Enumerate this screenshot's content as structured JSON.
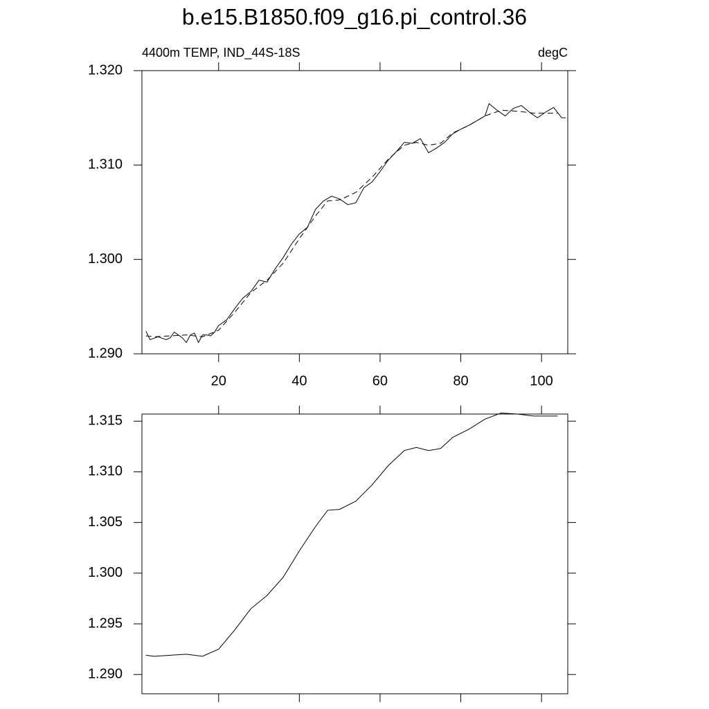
{
  "chart_data": [
    {
      "type": "line",
      "title": "b.e15.B1850.f09_g16.pi_control.36",
      "subtitle_left": "4400m TEMP, IND_44S-18S",
      "subtitle_right": "degC",
      "xlim": [
        1,
        106.5
      ],
      "xticks": [
        20,
        40,
        60,
        80,
        100
      ],
      "ylim": [
        1.29,
        1.32
      ],
      "yticks": [
        {
          "value": 1.29,
          "label": "1.290"
        },
        {
          "value": 1.3,
          "label": "1.300"
        },
        {
          "value": 1.31,
          "label": "1.310"
        },
        {
          "value": 1.32,
          "label": "1.320"
        }
      ],
      "series": [
        {
          "color": "#000000",
          "style": "solid",
          "x": [
            2,
            3,
            5,
            7,
            8,
            9,
            11,
            12,
            13,
            14,
            15,
            16,
            17,
            18,
            19,
            20,
            22,
            24,
            26,
            28,
            30,
            32,
            34,
            36,
            38,
            40,
            42,
            44,
            46,
            48,
            50,
            52,
            54,
            56,
            58,
            60,
            62,
            64,
            66,
            68,
            70,
            72,
            74,
            76,
            78,
            80,
            82,
            84,
            86,
            87,
            89,
            91,
            93,
            95,
            97,
            99,
            101,
            103,
            105,
            106
          ],
          "values": [
            1.2924,
            1.2915,
            1.2918,
            1.2915,
            1.2917,
            1.2923,
            1.2917,
            1.2912,
            1.292,
            1.2922,
            1.2912,
            1.292,
            1.292,
            1.2919,
            1.2923,
            1.293,
            1.2936,
            1.2948,
            1.2959,
            1.2966,
            1.2978,
            1.2976,
            1.299,
            1.3002,
            1.3016,
            1.3027,
            1.3034,
            1.3053,
            1.3062,
            1.3067,
            1.3064,
            1.3058,
            1.306,
            1.3076,
            1.3082,
            1.3093,
            1.3105,
            1.3114,
            1.3124,
            1.3123,
            1.3128,
            1.3113,
            1.3118,
            1.3124,
            1.3133,
            1.3138,
            1.3142,
            1.3147,
            1.3152,
            1.3165,
            1.3158,
            1.3152,
            1.316,
            1.3163,
            1.3156,
            1.315,
            1.3156,
            1.3161,
            1.315,
            1.315
          ]
        },
        {
          "color": "#000000",
          "style": "dashed",
          "x": [
            2,
            4,
            8,
            12,
            16,
            20,
            24,
            28,
            32,
            36,
            40,
            44,
            47,
            50,
            54,
            58,
            62,
            66,
            69,
            72,
            75,
            78,
            82,
            86,
            90,
            94,
            98,
            102,
            104
          ],
          "values": [
            1.2919,
            1.2918,
            1.2919,
            1.292,
            1.2918,
            1.2925,
            1.2944,
            1.2965,
            1.2978,
            1.2996,
            1.3022,
            1.3046,
            1.3062,
            1.3063,
            1.3071,
            1.3087,
            1.3106,
            1.3121,
            1.3124,
            1.3121,
            1.3123,
            1.3134,
            1.3142,
            1.3152,
            1.3158,
            1.3157,
            1.3155,
            1.3155,
            1.3155
          ]
        }
      ]
    },
    {
      "type": "line",
      "xlim": [
        1,
        106.5
      ],
      "xticks": [
        20,
        40,
        60,
        80,
        100
      ],
      "ylim": [
        1.2881,
        1.3157
      ],
      "yticks": [
        {
          "value": 1.29,
          "label": "1.290"
        },
        {
          "value": 1.295,
          "label": "1.295"
        },
        {
          "value": 1.3,
          "label": "1.300"
        },
        {
          "value": 1.305,
          "label": "1.305"
        },
        {
          "value": 1.31,
          "label": "1.310"
        },
        {
          "value": 1.315,
          "label": "1.315"
        }
      ],
      "series": [
        {
          "color": "#000000",
          "style": "solid",
          "x": [
            2,
            4,
            8,
            12,
            16,
            20,
            24,
            28,
            32,
            36,
            40,
            44,
            47,
            50,
            54,
            58,
            62,
            66,
            69,
            72,
            75,
            78,
            82,
            86,
            90,
            94,
            98,
            102,
            104
          ],
          "values": [
            1.2919,
            1.2918,
            1.2919,
            1.292,
            1.2918,
            1.2925,
            1.2944,
            1.2965,
            1.2978,
            1.2996,
            1.3022,
            1.3046,
            1.3062,
            1.3063,
            1.3071,
            1.3087,
            1.3106,
            1.3121,
            1.3124,
            1.3121,
            1.3123,
            1.3134,
            1.3142,
            1.3152,
            1.3158,
            1.3157,
            1.3155,
            1.3155,
            1.3155
          ]
        }
      ]
    }
  ]
}
